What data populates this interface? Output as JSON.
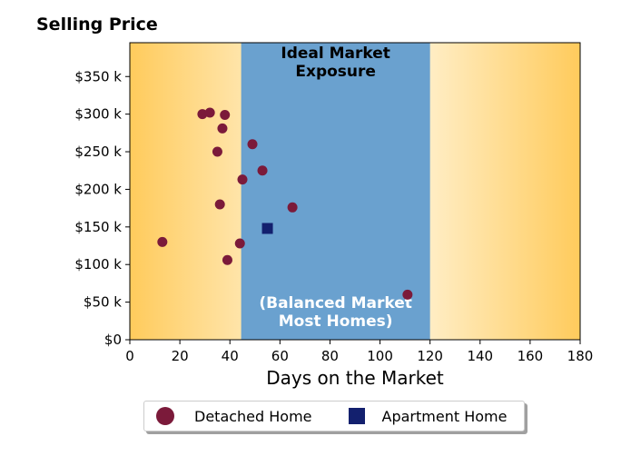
{
  "title": "Selling Price",
  "chart_data": {
    "type": "scatter",
    "title": "Selling Price",
    "xlabel": "Days on the Market",
    "ylabel": "",
    "xlim": [
      0,
      180
    ],
    "ylim": [
      0,
      395000
    ],
    "x_ticks": [
      0,
      20,
      40,
      60,
      80,
      100,
      120,
      140,
      160,
      180
    ],
    "y_ticks": [
      0,
      50000,
      100000,
      150000,
      200000,
      250000,
      300000,
      350000
    ],
    "y_tick_labels": [
      "$0",
      "$50 k",
      "$100 k",
      "$150 k",
      "$200 k",
      "$250 k",
      "$300 k",
      "$350 k"
    ],
    "grid": false,
    "legend_position": "bottom-center",
    "regions": [
      {
        "x_range": [
          44.5,
          120
        ],
        "color": "#6aa1cf",
        "label_top": "Ideal Market\nExposure",
        "label_bottom": "(Balanced Market\nMost Homes)"
      }
    ],
    "background_gradient": {
      "edge_color": "#ffcb5c",
      "center_color": "#fffef8"
    },
    "series": [
      {
        "name": "Detached Home",
        "marker": "circle",
        "color": "#7b1a3a",
        "points": [
          {
            "x": 13,
            "y": 130000
          },
          {
            "x": 29,
            "y": 300000
          },
          {
            "x": 32,
            "y": 302000
          },
          {
            "x": 38,
            "y": 299000
          },
          {
            "x": 37,
            "y": 281000
          },
          {
            "x": 35,
            "y": 250000
          },
          {
            "x": 49,
            "y": 260000
          },
          {
            "x": 53,
            "y": 225000
          },
          {
            "x": 45,
            "y": 213000
          },
          {
            "x": 36,
            "y": 180000
          },
          {
            "x": 65,
            "y": 176000
          },
          {
            "x": 44,
            "y": 128000
          },
          {
            "x": 39,
            "y": 106000
          },
          {
            "x": 111,
            "y": 60000
          }
        ]
      },
      {
        "name": "Apartment Home",
        "marker": "square",
        "color": "#13206e",
        "points": [
          {
            "x": 55,
            "y": 148000
          }
        ]
      }
    ]
  }
}
